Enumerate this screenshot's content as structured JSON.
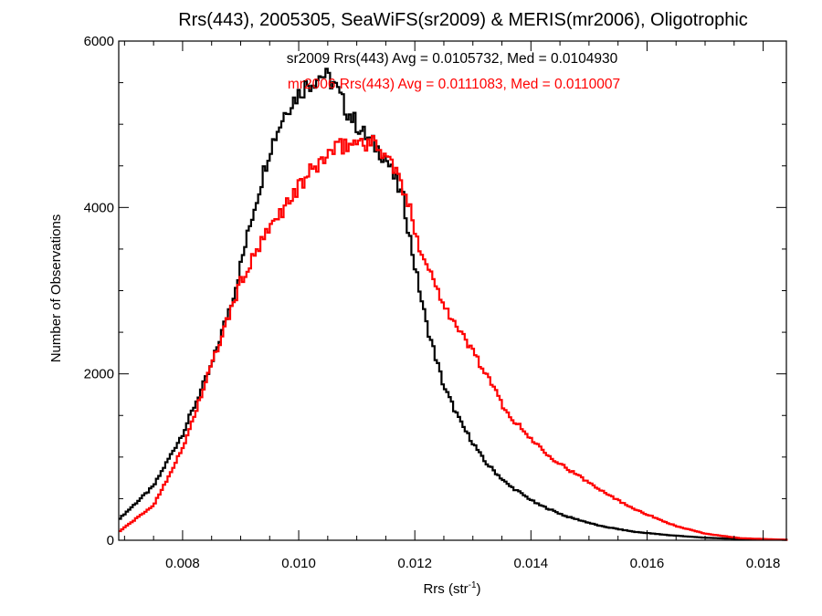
{
  "chart_data": {
    "type": "line",
    "style": "histogram-step",
    "title": "Rrs(443), 2005305, SeaWiFS(sr2009) & MERIS(mr2006), Oligotrophic",
    "xlabel_main": "Rrs (str",
    "xlabel_sup": "-1",
    "xlabel_close": ")",
    "ylabel": "Number of Observations",
    "xlim": [
      0.0069,
      0.0184
    ],
    "ylim": [
      0,
      6000
    ],
    "x_ticks": [
      {
        "value": 0.008,
        "label": "0.008"
      },
      {
        "value": 0.01,
        "label": "0.010"
      },
      {
        "value": 0.012,
        "label": "0.012"
      },
      {
        "value": 0.014,
        "label": "0.014"
      },
      {
        "value": 0.016,
        "label": "0.016"
      },
      {
        "value": 0.018,
        "label": "0.018"
      }
    ],
    "y_ticks": [
      {
        "value": 0,
        "label": "0"
      },
      {
        "value": 2000,
        "label": "2000"
      },
      {
        "value": 4000,
        "label": "4000"
      },
      {
        "value": 6000,
        "label": "6000"
      }
    ],
    "annotations": [
      {
        "text": "sr2009 Rrs(443) Avg = 0.0105732, Med = 0.0104930",
        "color": "#000000"
      },
      {
        "text": "mr2006 Rrs(443) Avg = 0.0111083, Med = 0.0110007",
        "color": "#ff0000"
      }
    ],
    "series": [
      {
        "color": "#000000",
        "x": [
          0.0069,
          0.0075,
          0.008,
          0.0085,
          0.0089,
          0.0092,
          0.0095,
          0.0098,
          0.0101,
          0.0104,
          0.0106,
          0.0108,
          0.0111,
          0.0113,
          0.0115,
          0.0118,
          0.012,
          0.0122,
          0.0125,
          0.0128,
          0.0132,
          0.0136,
          0.0141,
          0.0146,
          0.0152,
          0.0158,
          0.0164,
          0.017,
          0.0176,
          0.0184
        ],
        "y": [
          250,
          650,
          1280,
          2100,
          3000,
          3900,
          4700,
          5200,
          5450,
          5600,
          5500,
          5200,
          4900,
          4750,
          4600,
          4100,
          3300,
          2600,
          1850,
          1400,
          950,
          670,
          440,
          290,
          170,
          100,
          60,
          30,
          15,
          5
        ]
      },
      {
        "color": "#ff0000",
        "x": [
          0.0069,
          0.0075,
          0.008,
          0.0085,
          0.009,
          0.0093,
          0.0096,
          0.0099,
          0.0102,
          0.0105,
          0.0108,
          0.0111,
          0.0113,
          0.0115,
          0.0117,
          0.0119,
          0.0121,
          0.0124,
          0.0127,
          0.013,
          0.0133,
          0.0136,
          0.014,
          0.0144,
          0.0148,
          0.0152,
          0.0156,
          0.016,
          0.0165,
          0.017,
          0.0176,
          0.0184
        ],
        "y": [
          100,
          420,
          1100,
          2100,
          3100,
          3500,
          3850,
          4150,
          4420,
          4640,
          4750,
          4800,
          4760,
          4650,
          4400,
          4000,
          3500,
          3000,
          2580,
          2280,
          1900,
          1520,
          1220,
          970,
          780,
          610,
          440,
          310,
          170,
          80,
          25,
          5
        ]
      }
    ]
  }
}
